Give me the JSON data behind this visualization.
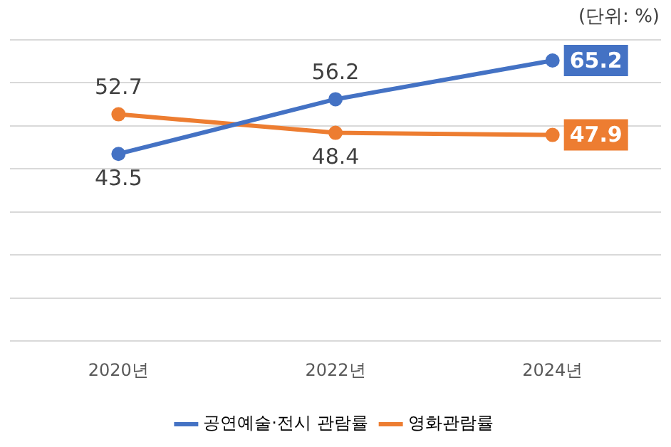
{
  "chart_data": {
    "type": "line",
    "categories": [
      "2020년",
      "2022년",
      "2024년"
    ],
    "series": [
      {
        "name": "공연예술·전시 관람률",
        "color": "#4472c4",
        "values": [
          43.5,
          56.2,
          65.2
        ]
      },
      {
        "name": "영화관람률",
        "color": "#ed7d31",
        "values": [
          52.7,
          48.4,
          47.9
        ]
      }
    ],
    "ylim": [
      0,
      70
    ],
    "yticks": [
      {
        "value": 0,
        "label": null
      },
      {
        "value": 10,
        "label": null
      },
      {
        "value": 20,
        "label": null
      },
      {
        "value": 30,
        "label": null
      },
      {
        "value": 40,
        "label": null
      },
      {
        "value": 50,
        "label": null
      },
      {
        "value": 60,
        "label": null
      },
      {
        "value": 70,
        "label": null
      }
    ],
    "grid": "y",
    "tick_labels": "x",
    "legend": "bottom",
    "marker": "circle",
    "line_style": "solid",
    "data_labels": true,
    "annotations": [
      "(단위: %)"
    ]
  }
}
